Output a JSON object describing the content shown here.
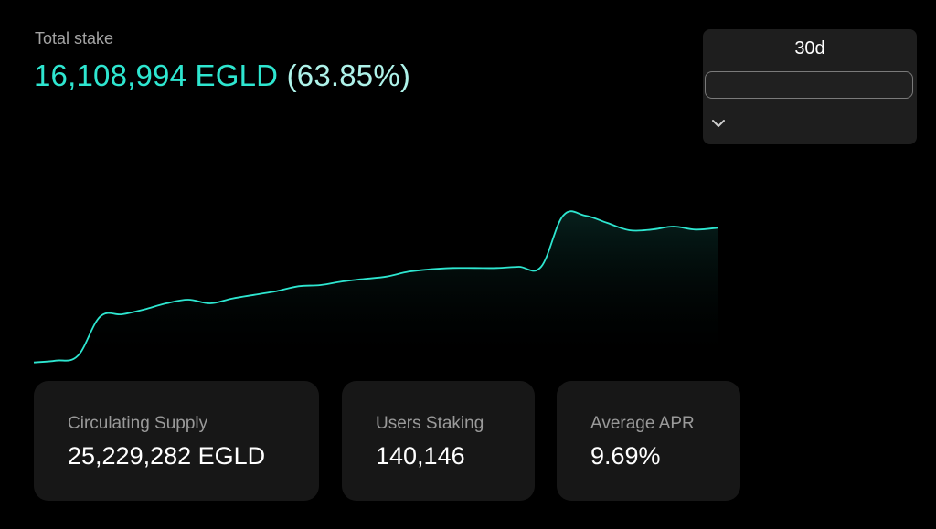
{
  "header": {
    "label": "Total stake",
    "amount": "16,108,994 EGLD",
    "percent": "(63.85%)"
  },
  "period_select": {
    "selected": "30d"
  },
  "stats": [
    {
      "label": "Circulating Supply",
      "value": "25,229,282 EGLD"
    },
    {
      "label": "Users Staking",
      "value": "140,146"
    },
    {
      "label": "Average APR",
      "value": "9.69%"
    }
  ],
  "colors": {
    "accent": "#2ee6d0",
    "percent": "#aef2e9",
    "card_bg": "#171717",
    "background": "#000000"
  },
  "chart_data": {
    "type": "area",
    "title": "",
    "xlabel": "",
    "ylabel": "",
    "grid": false,
    "legend": "none",
    "ylim": [
      14600000,
      16700000
    ],
    "series": [
      {
        "values": [
          14625000,
          14640000,
          14680000,
          15000000,
          15020000,
          15060000,
          15110000,
          15140000,
          15110000,
          15150000,
          15180000,
          15210000,
          15250000,
          15260000,
          15290000,
          15310000,
          15330000,
          15370000,
          15390000,
          15400000,
          15400000,
          15400000,
          15410000,
          15410000,
          15830000,
          15830000,
          15770000,
          15710000,
          15715000,
          15740000,
          15715000,
          15730000
        ]
      }
    ]
  }
}
